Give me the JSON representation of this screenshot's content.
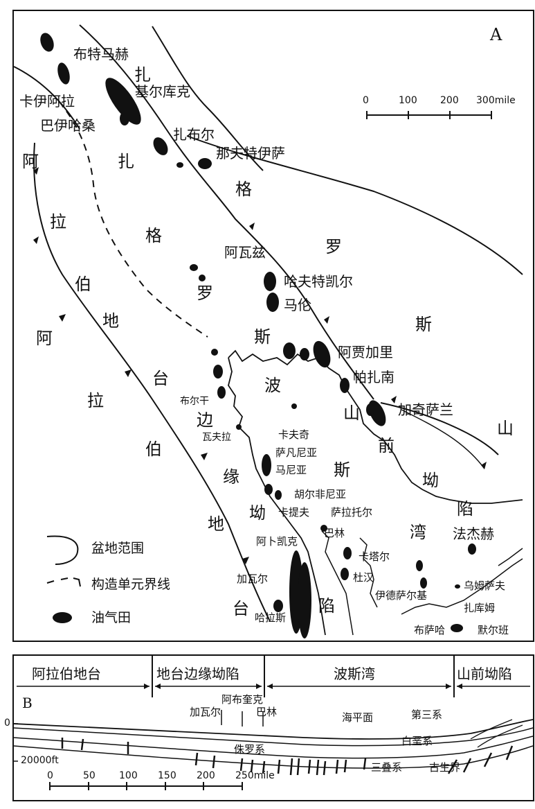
{
  "panelA": {
    "letter": "A",
    "scale": {
      "ticks": [
        "0",
        "100",
        "200"
      ],
      "end_label": "300mile"
    },
    "regions": {
      "arabian_platform": [
        "阿",
        "拉",
        "伯",
        "地",
        "台"
      ],
      "zagros_right": [
        "斯",
        "山"
      ],
      "arabia_left": [
        "阿",
        "拉",
        "伯",
        "地",
        "台"
      ],
      "zagros": [
        "扎",
        "格",
        "罗",
        "斯"
      ],
      "zagros_upper": [
        "扎",
        "格",
        "罗"
      ],
      "persian_gulf": [
        "波",
        "斯",
        "湾"
      ],
      "platform_margin": [
        "边",
        "缘",
        "坳",
        "陷"
      ],
      "foredeep": [
        "山",
        "前",
        "坳",
        "陷"
      ]
    },
    "fields": {
      "butmah": "布特马赫",
      "kirkuk": "基尔库克",
      "qaiyarah": "卡伊阿拉",
      "bai_hassan": "巴伊哈桑",
      "zab": "扎布尔",
      "naft_safid": "那夫特伊萨",
      "ahvaz": "阿瓦兹",
      "haft_kel": "哈夫特凯尔",
      "marun": "马伦",
      "agha_jari": "阿贾加里",
      "pazanan": "帕扎南",
      "gachsaran": "加奇萨兰",
      "burgan": "布尔干",
      "wafra": "瓦夫拉",
      "khafji": "卡夫奇",
      "safaniya": "萨凡尼亚",
      "manifa": "马尼亚",
      "khursaniyah": "胡尔非尼亚",
      "qatif": "卡提夫",
      "abqaiq": "阿卜凯克",
      "bahrain": "巴林",
      "ghawar": "加瓦尔",
      "haradh": "哈拉斯",
      "qatar": "卡塔尔",
      "dukhan": "杜汉",
      "id_el_shargi": "伊德萨尔基",
      "umm_shaif": "乌姆萨夫",
      "zakum": "扎库姆",
      "bu_hasa": "布萨哈",
      "murban": "默尔班",
      "fateh": "法杰赫",
      "safaniya_right": "萨拉托尔",
      "zagros_mountain": "山"
    },
    "legend": [
      {
        "icon": "basin-boundary-icon",
        "label": "盆地范围"
      },
      {
        "icon": "tectonic-boundary-icon",
        "label": "构造单元界线"
      },
      {
        "icon": "oil-field-icon",
        "label": "油气田"
      }
    ]
  },
  "panelB": {
    "letter": "B",
    "header": [
      "阿拉伯地台",
      "地台边缘坳陷",
      "波斯湾",
      "山前坳陷"
    ],
    "depth_labels": [
      "0",
      "20000ft"
    ],
    "well_labels": {
      "abqaiq": "阿布奎克",
      "ghawar": "加瓦尔",
      "bahrain": "巴林"
    },
    "strata": {
      "sea_level": "海平面",
      "tertiary": "第三系",
      "cretaceous": "白垩系",
      "jurassic": "侏罗系",
      "triassic": "三叠系",
      "paleozoic": "古生界"
    },
    "scale": {
      "ticks": [
        "0",
        "50",
        "100",
        "150",
        "200"
      ],
      "end_label": "250mile"
    }
  },
  "colors": {
    "ink": "#111111",
    "paper": "#ffffff"
  }
}
